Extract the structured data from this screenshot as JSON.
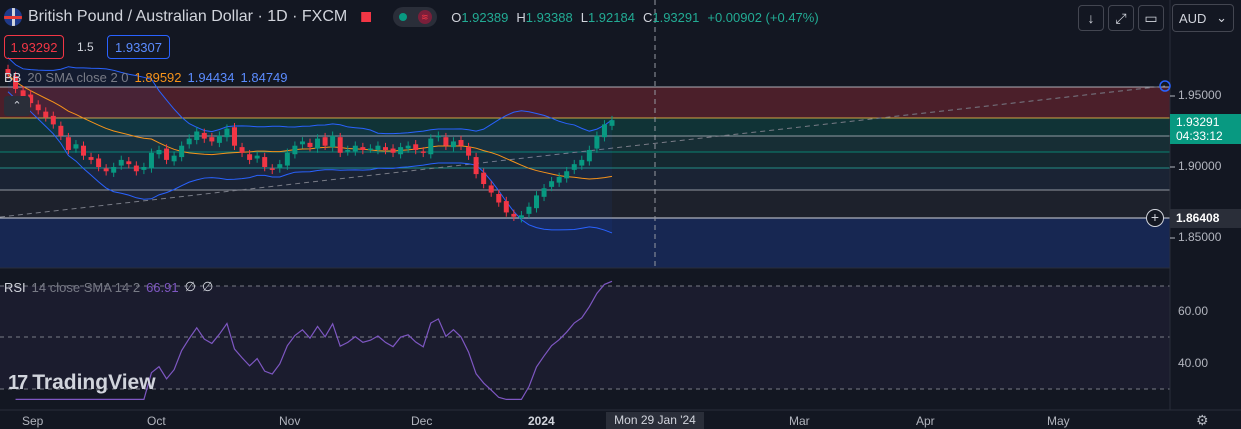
{
  "header": {
    "title": "British Pound / Australian Dollar · 1D · FXCM",
    "ohlc": {
      "open_label": "O",
      "open": "1.92389",
      "high_label": "H",
      "high": "1.93388",
      "low_label": "L",
      "low": "1.92184",
      "close_label": "C",
      "close": "1.93291",
      "change": "+0.00902 (+0.47%)"
    }
  },
  "trade": {
    "sell_price": "1.93292",
    "spread": "1.5",
    "buy_price": "1.93307"
  },
  "bb": {
    "name": "BB",
    "params": "20 SMA close 2 0",
    "basis": "1.89592",
    "upper": "1.94434",
    "lower": "1.84749",
    "basis_color": "#f7931a",
    "band_color": "#2962ff"
  },
  "rsi": {
    "name": "RSI",
    "params": "14 close SMA 14 2",
    "value": "66.91",
    "extra1": "∅",
    "extra2": "∅",
    "color": "#7e57c2"
  },
  "toolbar": {
    "currency": "AUD"
  },
  "price_axis": {
    "ticks": [
      "1.95000",
      "1.90000",
      "1.85000"
    ],
    "rsi_ticks": [
      "60.00",
      "40.00"
    ]
  },
  "last_price": {
    "value": "1.93291",
    "countdown": "04:33:12"
  },
  "crosshair": {
    "price": "1.86408",
    "date": "Mon 29 Jan '24"
  },
  "time_axis": {
    "labels": [
      "Sep",
      "Oct",
      "Nov",
      "Dec",
      "2024",
      "Mar",
      "Apr",
      "May"
    ]
  },
  "brand": {
    "logo_text": "TradingView"
  },
  "colors": {
    "up": "#089981",
    "down": "#f23645",
    "background": "#131722",
    "accent": "#2962ff"
  },
  "chart_data": {
    "type": "candlestick",
    "symbol": "GBPAUD",
    "timeframe": "1D",
    "ylim": [
      1.83,
      1.97
    ],
    "price_ticks": [
      1.95,
      1.9,
      1.85
    ],
    "close_approx": [
      1.965,
      1.955,
      1.95,
      1.945,
      1.94,
      1.935,
      1.93,
      1.922,
      1.912,
      1.916,
      1.908,
      1.905,
      1.9,
      1.897,
      1.9,
      1.905,
      1.902,
      1.897,
      1.9,
      1.91,
      1.912,
      1.905,
      1.908,
      1.915,
      1.92,
      1.925,
      1.92,
      1.918,
      1.922,
      1.927,
      1.915,
      1.91,
      1.905,
      1.908,
      1.9,
      1.898,
      1.902,
      1.91,
      1.915,
      1.918,
      1.914,
      1.92,
      1.915,
      1.922,
      1.91,
      1.912,
      1.915,
      1.912,
      1.913,
      1.915,
      1.912,
      1.91,
      1.914,
      1.915,
      1.912,
      1.91,
      1.92,
      1.922,
      1.915,
      1.918,
      1.915,
      1.908,
      1.895,
      1.888,
      1.882,
      1.875,
      1.868,
      1.865,
      1.866,
      1.872,
      1.88,
      1.885,
      1.89,
      1.893,
      1.897,
      1.902,
      1.905,
      1.912,
      1.922,
      1.93,
      1.933
    ],
    "rsi_ticks": [
      60,
      40
    ],
    "rsi_last": 66.91
  }
}
